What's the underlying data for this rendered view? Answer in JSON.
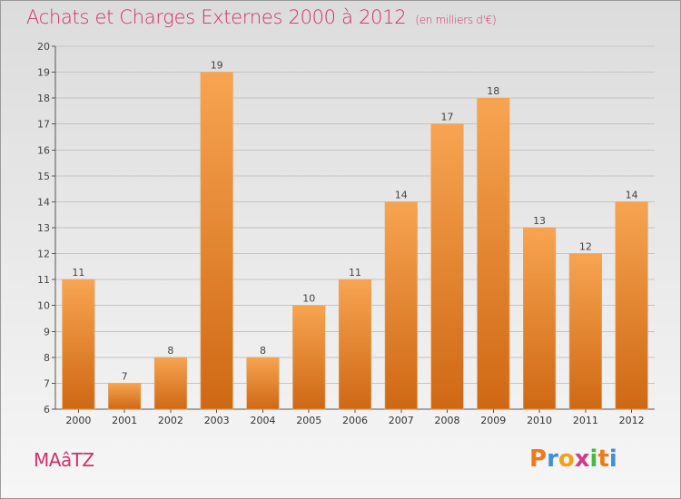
{
  "header": {
    "title": "Achats et Charges Externes 2000 à 2012",
    "subtitle": "(en milliers d'€)"
  },
  "footer": {
    "town": "MAâTZ",
    "logo_letters": [
      "P",
      "r",
      "o",
      "x",
      "i",
      "t",
      "i"
    ],
    "logo_colors": [
      "#f07a1a",
      "#3c8fd8",
      "#f0a020",
      "#d23a8a",
      "#48b848",
      "#f07a1a",
      "#3c8fd8"
    ]
  },
  "colors": {
    "bar_top": "#f7a451",
    "bar_bottom": "#cf6814",
    "title": "#d2306a"
  },
  "chart_data": {
    "type": "bar",
    "categories": [
      "2000",
      "2001",
      "2002",
      "2003",
      "2004",
      "2005",
      "2006",
      "2007",
      "2008",
      "2009",
      "2010",
      "2011",
      "2012"
    ],
    "values": [
      11,
      7,
      8,
      19,
      8,
      10,
      11,
      14,
      17,
      18,
      13,
      12,
      14
    ],
    "data_labels": [
      "11",
      "7",
      "8",
      "19",
      "8",
      "10",
      "11",
      "14",
      "17",
      "18",
      "13",
      "12",
      "14"
    ],
    "yticks": [
      "6",
      "7",
      "8",
      "9",
      "10",
      "11",
      "12",
      "13",
      "14",
      "15",
      "16",
      "17",
      "18",
      "19",
      "20"
    ],
    "ylim": [
      6,
      20
    ],
    "grid": true,
    "legend": "none"
  }
}
